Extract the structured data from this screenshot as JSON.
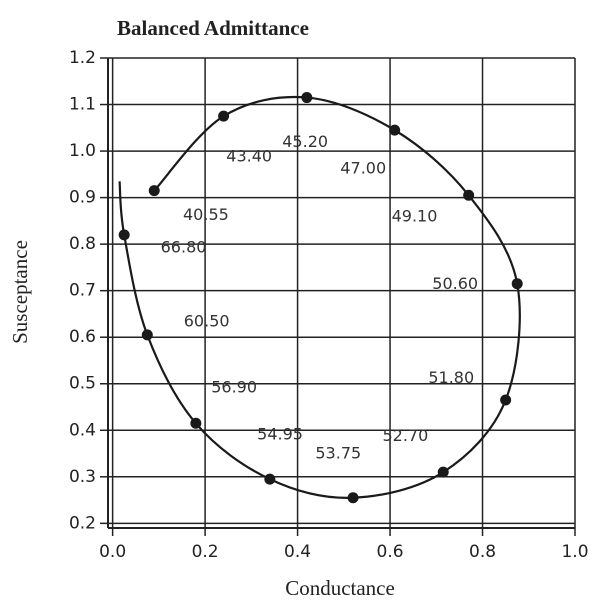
{
  "chart_data": {
    "type": "line",
    "title": "Balanced Admittance",
    "x_label": "Conductance",
    "y_label": "Susceptance",
    "x": [
      0.09,
      0.24,
      0.42,
      0.61,
      0.77,
      0.875,
      0.85,
      0.715,
      0.52,
      0.34,
      0.18,
      0.075,
      0.025,
      0.015
    ],
    "y": [
      0.915,
      1.075,
      1.115,
      1.045,
      0.905,
      0.715,
      0.465,
      0.31,
      0.255,
      0.295,
      0.415,
      0.605,
      0.82,
      0.935
    ],
    "point_labels": [
      "40.55",
      "43.40",
      "45.20",
      "47.00",
      "49.10",
      "50.60",
      "51.80",
      "52.70",
      "53.75",
      "54.95",
      "56.90",
      "60.50",
      "66.80",
      null
    ],
    "color": "#1a1a1a",
    "xlim": [
      -0.01,
      1.0
    ],
    "ylim": [
      0.19,
      1.2
    ],
    "xticks": [
      {
        "value": 0,
        "label": "0.0"
      },
      0.2,
      0.4,
      0.6,
      0.8,
      {
        "value": 1,
        "label": "1.0"
      }
    ],
    "yticks": [
      0.2,
      0.3,
      0.4,
      0.5,
      0.6,
      0.7,
      0.8,
      0.9,
      {
        "value": 1,
        "label": "1.0"
      },
      1.1,
      1.2
    ],
    "grid": true
  }
}
